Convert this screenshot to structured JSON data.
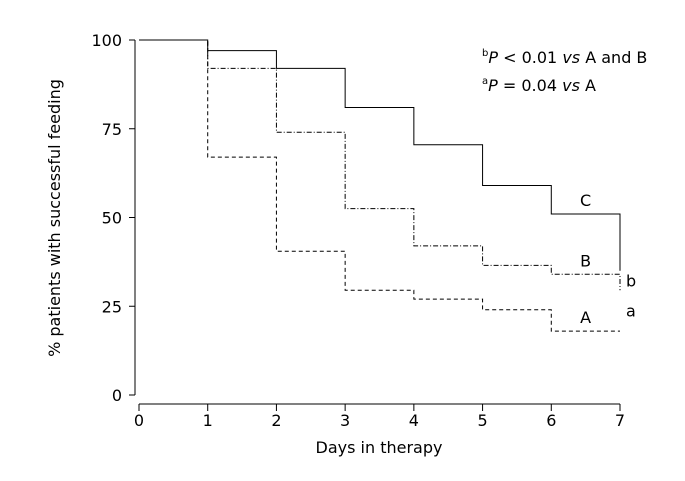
{
  "chart_data": {
    "type": "line",
    "step": true,
    "xlabel": "Days in therapy",
    "ylabel": "% patients with successful feeding",
    "x_ticks": [
      0,
      1,
      2,
      3,
      4,
      5,
      6,
      7
    ],
    "y_ticks": [
      0,
      25,
      50,
      75,
      100
    ],
    "xlim": [
      0,
      7
    ],
    "ylim": [
      0,
      100
    ],
    "grid": false,
    "series": [
      {
        "name": "C",
        "line_style": "solid",
        "x": [
          0,
          1,
          2,
          3,
          4,
          5,
          6,
          7
        ],
        "y": [
          100,
          97,
          92,
          81,
          70.5,
          59,
          51,
          35
        ]
      },
      {
        "name": "B",
        "line_style": "dash-dot",
        "x": [
          0,
          1,
          2,
          3,
          4,
          5,
          6,
          7
        ],
        "y": [
          100,
          92,
          74,
          52.5,
          42,
          36.5,
          34,
          29.5
        ]
      },
      {
        "name": "A",
        "line_style": "dashed",
        "x": [
          0,
          1,
          2,
          3,
          4,
          5,
          6,
          7
        ],
        "y": [
          100,
          67,
          40.5,
          29.5,
          27,
          24,
          18,
          18
        ]
      }
    ],
    "significance": [
      {
        "mark": "b",
        "between": [
          "C",
          "B"
        ],
        "at_x": 7
      },
      {
        "mark": "a",
        "between": [
          "B",
          "A"
        ],
        "at_x": 7
      }
    ],
    "annotations": [
      {
        "sup": "b",
        "p": "P",
        "rest": " < 0.01 ",
        "vs": "vs",
        "tail": " A and B"
      },
      {
        "sup": "a",
        "p": "P",
        "rest": " = 0.04 ",
        "vs": "vs",
        "tail": " A"
      }
    ]
  }
}
